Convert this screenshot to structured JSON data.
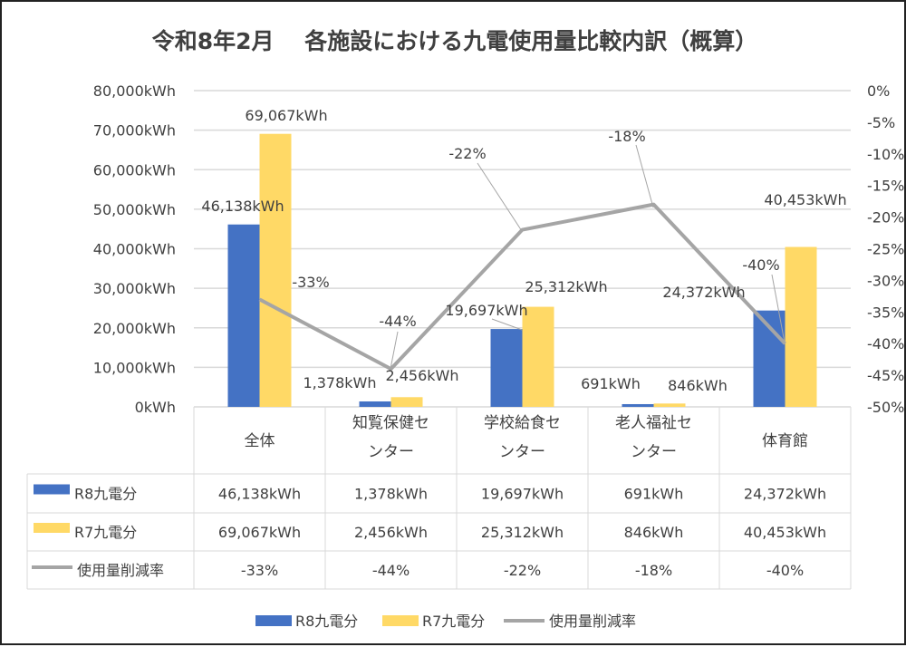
{
  "chart_data": {
    "type": "bar+line",
    "title": "令和8年2月　 各施設における九電使用量比較内訳（概算）",
    "categories": [
      "全体",
      "知覧保健センター",
      "学校給食センター",
      "老人福祉センター",
      "体育館"
    ],
    "category_lines": [
      [
        "全体"
      ],
      [
        "知覧保健セ",
        "ンター"
      ],
      [
        "学校給食セ",
        "ンター"
      ],
      [
        "老人福祉セ",
        "ンター"
      ],
      [
        "体育館"
      ]
    ],
    "series": [
      {
        "name": "R8九電分",
        "type": "bar",
        "axis": "left",
        "color": "#4472C4",
        "values": [
          46138,
          1378,
          19697,
          691,
          24372
        ],
        "labels": [
          "46,138kWh",
          "1,378kWh",
          "19,697kWh",
          "691kWh",
          "24,372kWh"
        ]
      },
      {
        "name": "R7九電分",
        "type": "bar",
        "axis": "left",
        "color": "#FFD966",
        "values": [
          69067,
          2456,
          25312,
          846,
          40453
        ],
        "labels": [
          "69,067kWh",
          "2,456kWh",
          "25,312kWh",
          "846kWh",
          "40,453kWh"
        ]
      },
      {
        "name": "使用量削減率",
        "type": "line",
        "axis": "right",
        "color": "#A5A5A5",
        "values": [
          -33,
          -44,
          -22,
          -18,
          -40
        ],
        "labels": [
          "-33%",
          "-44%",
          "-22%",
          "-18%",
          "-40%"
        ]
      }
    ],
    "left_axis": {
      "ylim": [
        0,
        80000
      ],
      "ticks": [
        "0kWh",
        "10,000kWh",
        "20,000kWh",
        "30,000kWh",
        "40,000kWh",
        "50,000kWh",
        "60,000kWh",
        "70,000kWh",
        "80,000kWh"
      ]
    },
    "right_axis": {
      "ylim": [
        -50,
        0
      ],
      "ticks": [
        "-50%",
        "-45%",
        "-40%",
        "-35%",
        "-30%",
        "-25%",
        "-20%",
        "-15%",
        "-10%",
        "-5%",
        "0%"
      ]
    },
    "grid": true,
    "legend": "bottom",
    "data_table": true
  }
}
